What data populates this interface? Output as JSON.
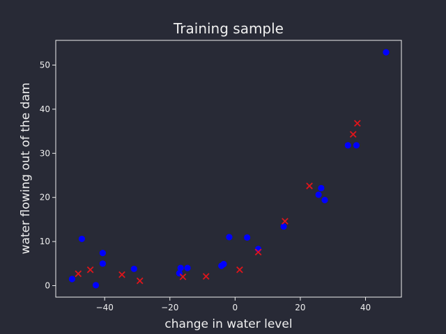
{
  "chart_data": {
    "type": "scatter",
    "title": "Training sample",
    "xlabel": "change in water level",
    "ylabel": "water flowing out of the dam",
    "xlim": [
      -55,
      51
    ],
    "ylim": [
      -2.6,
      55.6
    ],
    "xticks": [
      -40,
      -20,
      0,
      20,
      40
    ],
    "xtick_labels": [
      "−40",
      "−20",
      "0",
      "20",
      "40"
    ],
    "yticks": [
      0,
      10,
      20,
      30,
      40,
      50
    ],
    "ytick_labels": [
      "0",
      "10",
      "20",
      "30",
      "40",
      "50"
    ],
    "grid": false,
    "series": [
      {
        "marker": "circle",
        "color": "#0000ff",
        "points": [
          [
            -50.0,
            1.5
          ],
          [
            -47.0,
            10.6
          ],
          [
            -42.7,
            0.1
          ],
          [
            -40.6,
            7.4
          ],
          [
            -40.6,
            5.0
          ],
          [
            -31.0,
            3.8
          ],
          [
            -17.1,
            2.8
          ],
          [
            -16.7,
            4.0
          ],
          [
            -14.6,
            4.0
          ],
          [
            -4.2,
            4.5
          ],
          [
            -3.5,
            4.9
          ],
          [
            -1.8,
            11.0
          ],
          [
            3.7,
            10.9
          ],
          [
            7.1,
            8.3
          ],
          [
            14.9,
            13.4
          ],
          [
            25.6,
            20.6
          ],
          [
            26.4,
            22.1
          ],
          [
            27.5,
            19.4
          ],
          [
            34.6,
            31.8
          ],
          [
            37.2,
            31.8
          ],
          [
            46.3,
            52.9
          ]
        ]
      },
      {
        "marker": "x",
        "color": "#e0151b",
        "points": [
          [
            -48.1,
            2.7
          ],
          [
            -44.4,
            3.6
          ],
          [
            -34.7,
            2.5
          ],
          [
            -29.2,
            1.1
          ],
          [
            -16.0,
            2.0
          ],
          [
            -8.9,
            2.1
          ],
          [
            1.4,
            3.6
          ],
          [
            7.1,
            7.6
          ],
          [
            15.3,
            14.6
          ],
          [
            22.8,
            22.6
          ],
          [
            36.2,
            34.3
          ],
          [
            37.5,
            36.8
          ]
        ]
      }
    ]
  }
}
